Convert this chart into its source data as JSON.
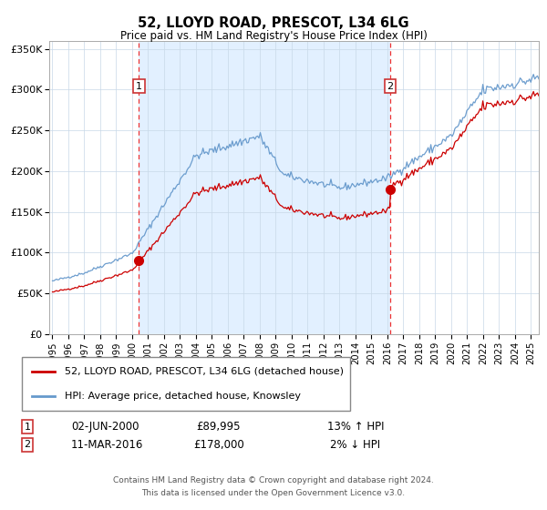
{
  "title": "52, LLOYD ROAD, PRESCOT, L34 6LG",
  "subtitle": "Price paid vs. HM Land Registry's House Price Index (HPI)",
  "legend1": "52, LLOYD ROAD, PRESCOT, L34 6LG (detached house)",
  "legend2": "HPI: Average price, detached house, Knowsley",
  "annotation1_date": "02-JUN-2000",
  "annotation1_price": "£89,995",
  "annotation1_hpi": "13% ↑ HPI",
  "annotation2_date": "11-MAR-2016",
  "annotation2_price": "£178,000",
  "annotation2_hpi": "2% ↓ HPI",
  "footer_line1": "Contains HM Land Registry data © Crown copyright and database right 2024.",
  "footer_line2": "This data is licensed under the Open Government Licence v3.0.",
  "sale1_year": 2000.42,
  "sale1_price": 89995,
  "sale2_year": 2016.19,
  "sale2_price": 178000,
  "red_line_color": "#cc0000",
  "blue_line_color": "#6699cc",
  "vline_color": "#ee3333",
  "dot_color": "#cc0000",
  "bg_color": "#ddeeff",
  "ylim_max": 360000,
  "ylim_min": 0,
  "xlim_min": 1994.8,
  "xlim_max": 2025.5
}
